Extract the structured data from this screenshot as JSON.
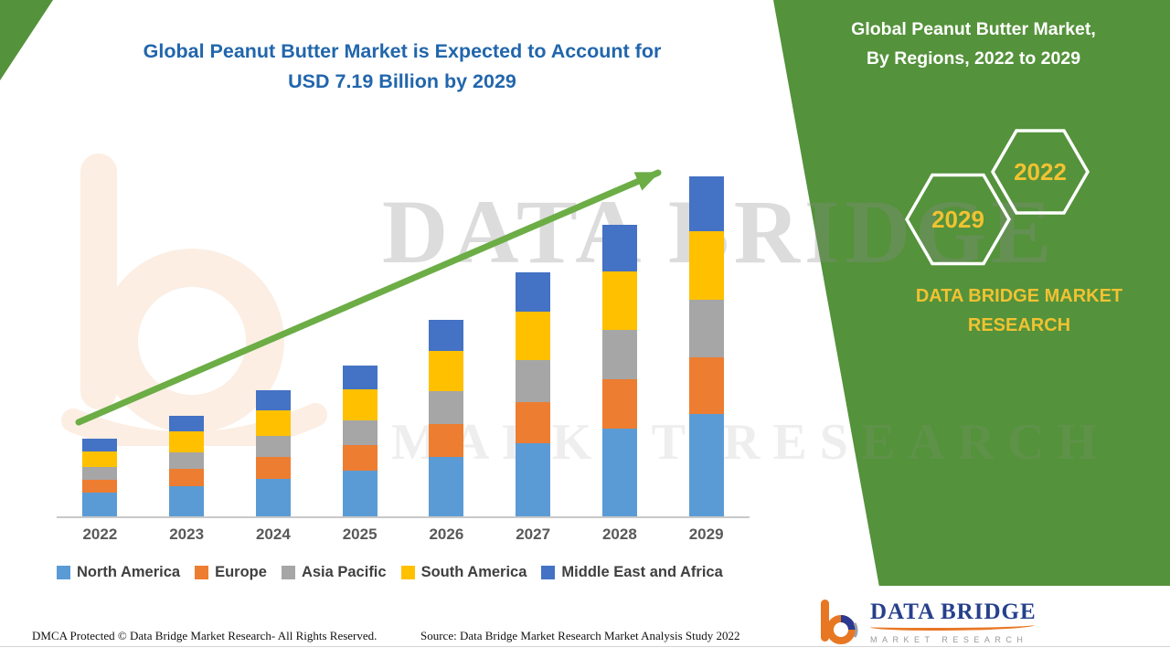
{
  "title": {
    "line1": "Global Peanut Butter Market is Expected to Account for",
    "line2": "USD 7.19 Billion by 2029"
  },
  "right_panel": {
    "heading_line1": "Global Peanut Butter Market,",
    "heading_line2": "By Regions, 2022 to 2029",
    "hexagons": [
      {
        "label": "2029"
      },
      {
        "label": "2022"
      }
    ],
    "brand_line1": "DATA BRIDGE MARKET",
    "brand_line2": "RESEARCH",
    "panel_color": "#54923B",
    "accent_yellow": "#F1C232"
  },
  "watermark": {
    "line1": "DATA BRIDGE",
    "line2": "MARKET RESEARCH"
  },
  "logo": {
    "name": "DATA BRIDGE",
    "tagline": "MARKET RESEARCH"
  },
  "footer": {
    "dmca": "DMCA Protected © Data Bridge Market Research- All Rights Reserved.",
    "source": "Source: Data Bridge Market Research Market Analysis Study 2022"
  },
  "chart_data": {
    "type": "bar",
    "stacked": true,
    "title": "Global Peanut Butter Market is Expected to Account for USD 7.19 Billion by 2029",
    "categories": [
      "2022",
      "2023",
      "2024",
      "2025",
      "2026",
      "2027",
      "2028",
      "2029"
    ],
    "series": [
      {
        "name": "North America",
        "color": "#5B9BD5",
        "values": [
          0.5,
          0.64,
          0.8,
          0.96,
          1.25,
          1.55,
          1.86,
          2.16
        ]
      },
      {
        "name": "Europe",
        "color": "#ED7D31",
        "values": [
          0.27,
          0.36,
          0.45,
          0.54,
          0.7,
          0.87,
          1.04,
          1.21
        ]
      },
      {
        "name": "Asia Pacific",
        "color": "#A6A6A6",
        "values": [
          0.27,
          0.36,
          0.45,
          0.54,
          0.7,
          0.88,
          1.05,
          1.22
        ]
      },
      {
        "name": "South America",
        "color": "#FFC000",
        "values": [
          0.34,
          0.44,
          0.54,
          0.65,
          0.84,
          1.04,
          1.24,
          1.45
        ]
      },
      {
        "name": "Middle East and Africa",
        "color": "#4472C4",
        "values": [
          0.26,
          0.33,
          0.42,
          0.5,
          0.66,
          0.82,
          0.98,
          1.15
        ]
      }
    ],
    "totals": [
      1.64,
      2.13,
      2.66,
      3.19,
      4.15,
      5.16,
      6.17,
      7.19
    ],
    "xlabel": "",
    "ylabel": "",
    "ylim": [
      0,
      7.5
    ],
    "grid": false,
    "legend_position": "bottom",
    "trend_arrow": true,
    "trend_arrow_color": "#6CAD46"
  }
}
